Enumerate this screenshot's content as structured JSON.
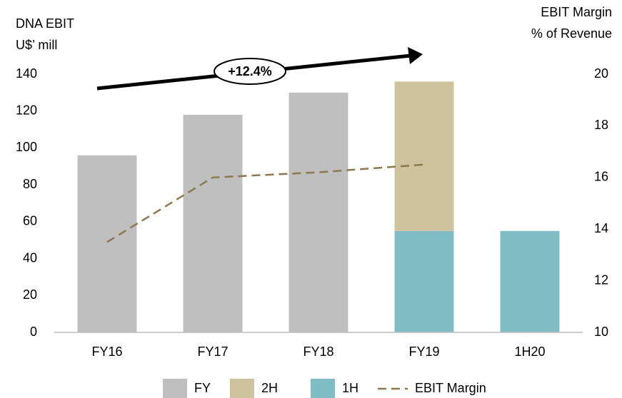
{
  "chart_data": {
    "type": "bar",
    "y_label": [
      "DNA EBIT",
      "U$’ mill"
    ],
    "y2_label": [
      "EBIT Margin",
      "% of Revenue"
    ],
    "categories": [
      "FY16",
      "FY17",
      "FY18",
      "FY19",
      "1H20"
    ],
    "series": [
      {
        "name": "FY",
        "color": "#bfbfbf",
        "values": [
          96,
          118,
          130,
          null,
          null
        ]
      },
      {
        "name": "2H",
        "color": "#cfc39e",
        "values": [
          null,
          null,
          null,
          81,
          null
        ]
      },
      {
        "name": "1H",
        "color": "#7fbcc4",
        "values": [
          null,
          null,
          null,
          55,
          55
        ]
      },
      {
        "name": "EBIT Margin",
        "type": "line",
        "axis": "y2",
        "color": "#8b7a50",
        "dashed": true,
        "values": [
          13.5,
          16.0,
          16.2,
          16.5,
          null
        ]
      }
    ],
    "stacked": true,
    "ylim": [
      0,
      140
    ],
    "yticks": [
      0,
      20,
      40,
      60,
      80,
      100,
      120,
      140
    ],
    "y2lim": [
      10,
      20
    ],
    "y2ticks": [
      10,
      12,
      14,
      16,
      18,
      20
    ],
    "annotation": "+12.4%",
    "legend": "bottom"
  }
}
